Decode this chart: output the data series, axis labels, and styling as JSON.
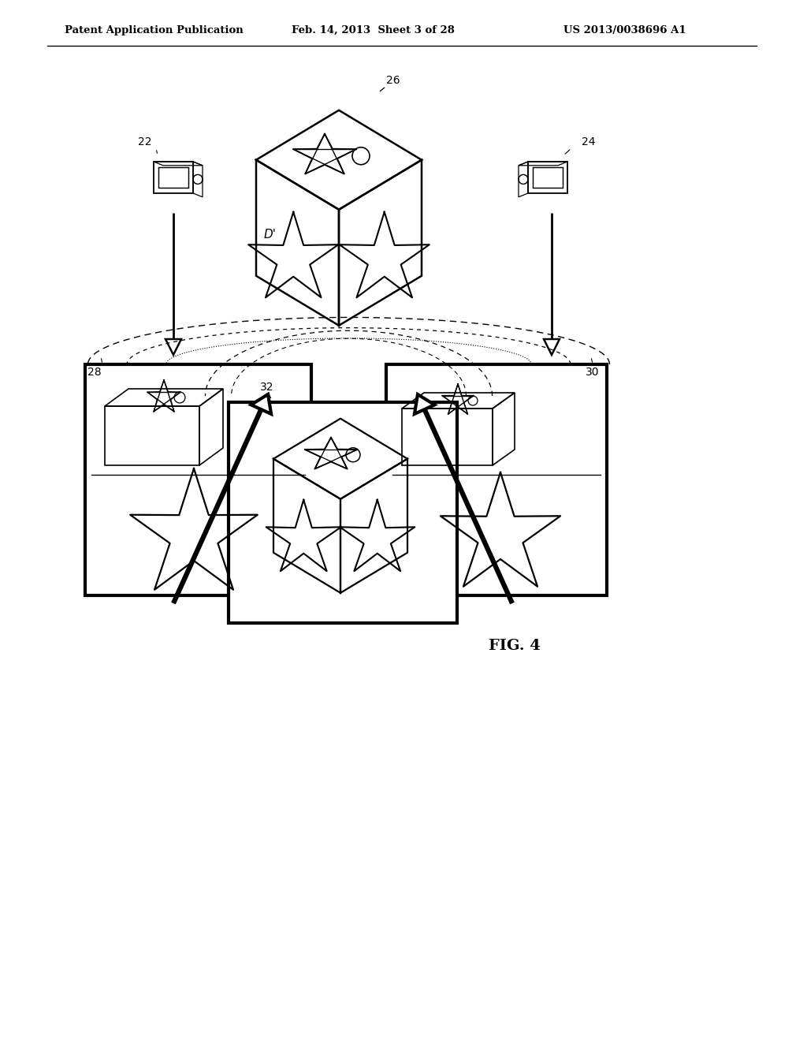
{
  "bg_color": "#ffffff",
  "line_color": "#000000",
  "header_text_1": "Patent Application Publication",
  "header_text_2": "Feb. 14, 2013  Sheet 3 of 28",
  "header_text_3": "US 2013/0038696 A1",
  "fig_label": "FIG. 4",
  "label_26": "26",
  "label_22": "22",
  "label_24": "24",
  "label_28": "28",
  "label_30": "30",
  "label_32": "32",
  "label_D": "D'"
}
